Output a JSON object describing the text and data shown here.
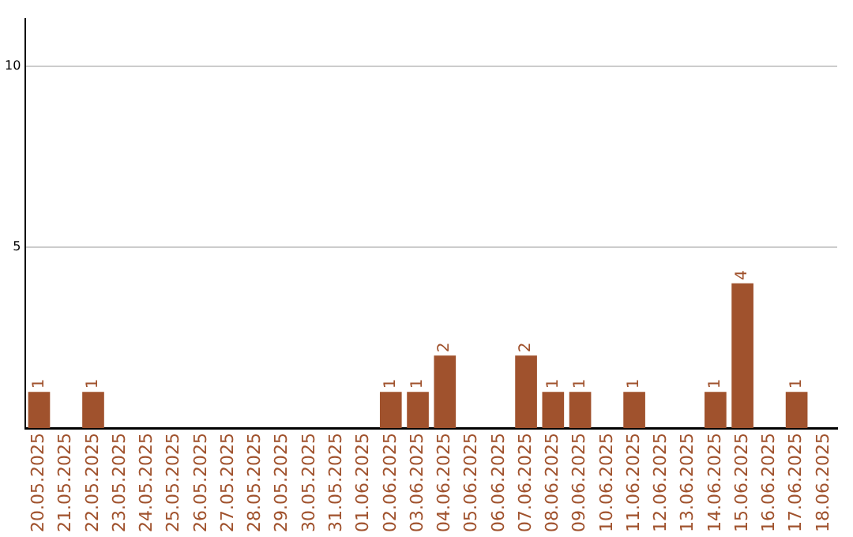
{
  "chart_data": {
    "type": "bar",
    "categories": [
      "20.05.2025",
      "21.05.2025",
      "22.05.2025",
      "23.05.2025",
      "24.05.2025",
      "25.05.2025",
      "26.05.2025",
      "27.05.2025",
      "28.05.2025",
      "29.05.2025",
      "30.05.2025",
      "31.05.2025",
      "01.06.2025",
      "02.06.2025",
      "03.06.2025",
      "04.06.2025",
      "05.06.2025",
      "06.06.2025",
      "07.06.2025",
      "08.06.2025",
      "09.06.2025",
      "10.06.2025",
      "11.06.2025",
      "12.06.2025",
      "13.06.2025",
      "14.06.2025",
      "15.06.2025",
      "16.06.2025",
      "17.06.2025",
      "18.06.2025"
    ],
    "values": [
      1,
      0,
      1,
      0,
      0,
      0,
      0,
      0,
      0,
      0,
      0,
      0,
      0,
      1,
      1,
      2,
      0,
      0,
      2,
      1,
      1,
      0,
      1,
      0,
      0,
      1,
      4,
      0,
      1,
      0
    ],
    "value_labels": [
      "1",
      null,
      "1",
      null,
      null,
      null,
      null,
      null,
      null,
      null,
      null,
      null,
      null,
      "1",
      "1",
      "2",
      null,
      null,
      "2",
      "1",
      "1",
      null,
      "1",
      null,
      null,
      "1",
      "4",
      null,
      "1",
      null
    ],
    "color": "#a0522d",
    "ylim": [
      0,
      11.3
    ],
    "yticks": [
      5,
      10
    ],
    "grid": "y",
    "legend": false
  }
}
